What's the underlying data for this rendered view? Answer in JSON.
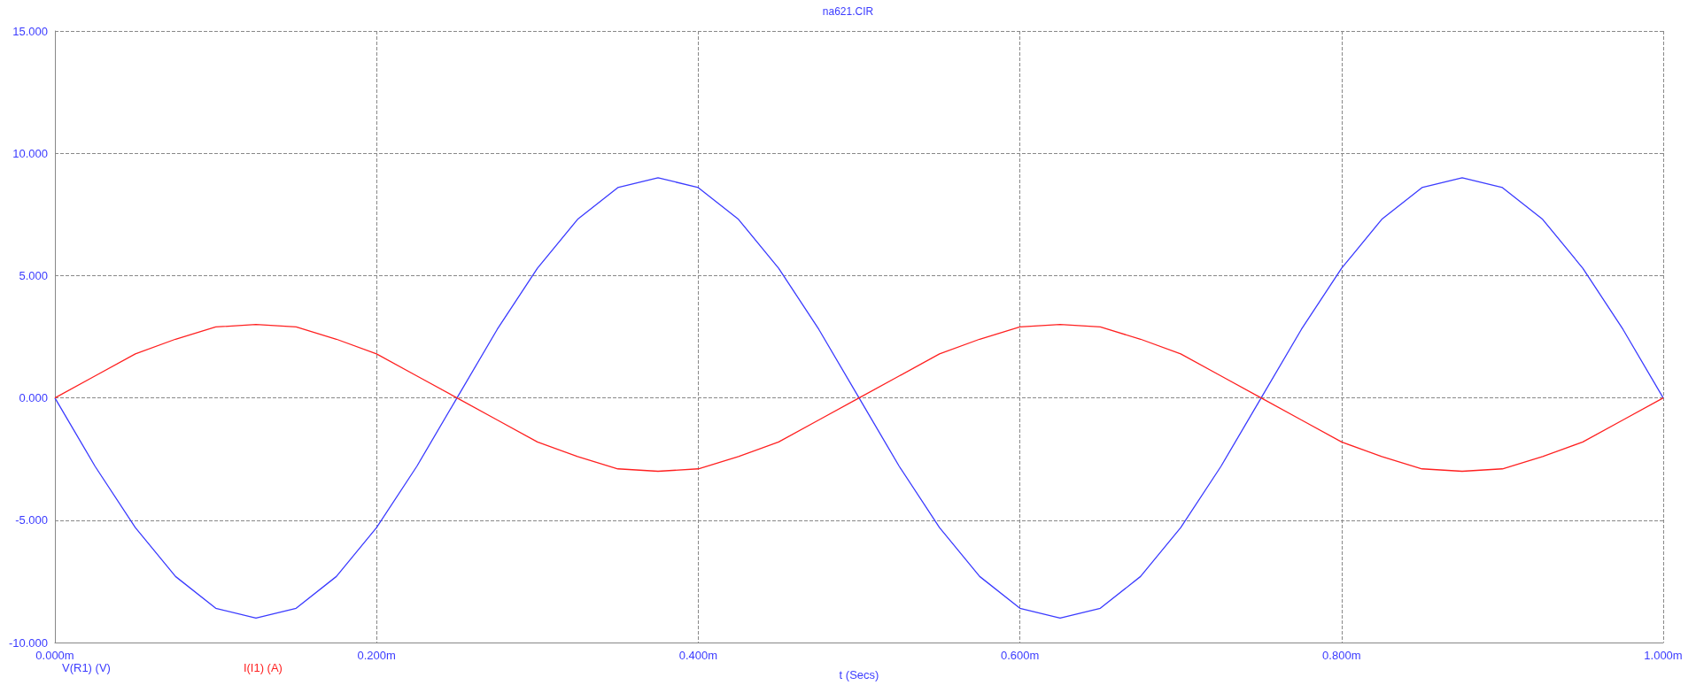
{
  "chart_data": {
    "type": "line",
    "subtitle": "na621.CIR",
    "xlabel": "t (Secs)",
    "x": [
      0,
      0.025,
      0.05,
      0.075,
      0.1,
      0.125,
      0.15,
      0.175,
      0.2,
      0.225,
      0.25,
      0.275,
      0.3,
      0.325,
      0.35,
      0.375,
      0.4,
      0.425,
      0.45,
      0.475,
      0.5,
      0.525,
      0.55,
      0.575,
      0.6,
      0.625,
      0.65,
      0.675,
      0.7,
      0.725,
      0.75,
      0.775,
      0.8,
      0.825,
      0.85,
      0.875,
      0.9,
      0.925,
      0.95,
      0.975,
      1
    ],
    "series": [
      {
        "name": "V(R1) (V)",
        "color": "#3b3bff",
        "values": [
          0,
          -2.8,
          -5.3,
          -7.3,
          -8.6,
          -9,
          -8.6,
          -7.3,
          -5.3,
          -2.8,
          0,
          2.8,
          5.3,
          7.3,
          8.6,
          9,
          8.6,
          7.3,
          5.3,
          2.8,
          0,
          -2.8,
          -5.3,
          -7.3,
          -8.6,
          -9,
          -8.6,
          -7.3,
          -5.3,
          -2.8,
          0,
          2.8,
          5.3,
          7.3,
          8.6,
          9,
          8.6,
          7.3,
          5.3,
          2.8,
          0
        ]
      },
      {
        "name": "I(I1) (A)",
        "color": "#ff2020",
        "values": [
          0,
          0.9,
          1.8,
          2.4,
          2.9,
          3,
          2.9,
          2.4,
          1.8,
          0.9,
          0,
          -0.9,
          -1.8,
          -2.4,
          -2.9,
          -3,
          -2.9,
          -2.4,
          -1.8,
          -0.9,
          0,
          0.9,
          1.8,
          2.4,
          2.9,
          3,
          2.9,
          2.4,
          1.8,
          0.9,
          0,
          -0.9,
          -1.8,
          -2.4,
          -2.9,
          -3,
          -2.9,
          -2.4,
          -1.8,
          -0.9,
          0
        ]
      }
    ],
    "xlim": [
      0,
      1
    ],
    "xticks": [
      {
        "value": 0,
        "label": "0.000m"
      },
      {
        "value": 0.2,
        "label": "0.200m"
      },
      {
        "value": 0.4,
        "label": "0.400m"
      },
      {
        "value": 0.6,
        "label": "0.600m"
      },
      {
        "value": 0.8,
        "label": "0.800m"
      },
      {
        "value": 1,
        "label": "1.000m"
      }
    ],
    "ylim": [
      -10,
      15
    ],
    "yticks": [
      {
        "value": -10,
        "label": "-10.000"
      },
      {
        "value": -5,
        "label": "-5.000"
      },
      {
        "value": 0,
        "label": "0.000"
      },
      {
        "value": 5,
        "label": "5.000"
      },
      {
        "value": 10,
        "label": "10.000"
      },
      {
        "value": 15,
        "label": "15.000"
      }
    ],
    "grid": true,
    "legend": "bottom left",
    "marker": "none",
    "line_style": "solid"
  }
}
